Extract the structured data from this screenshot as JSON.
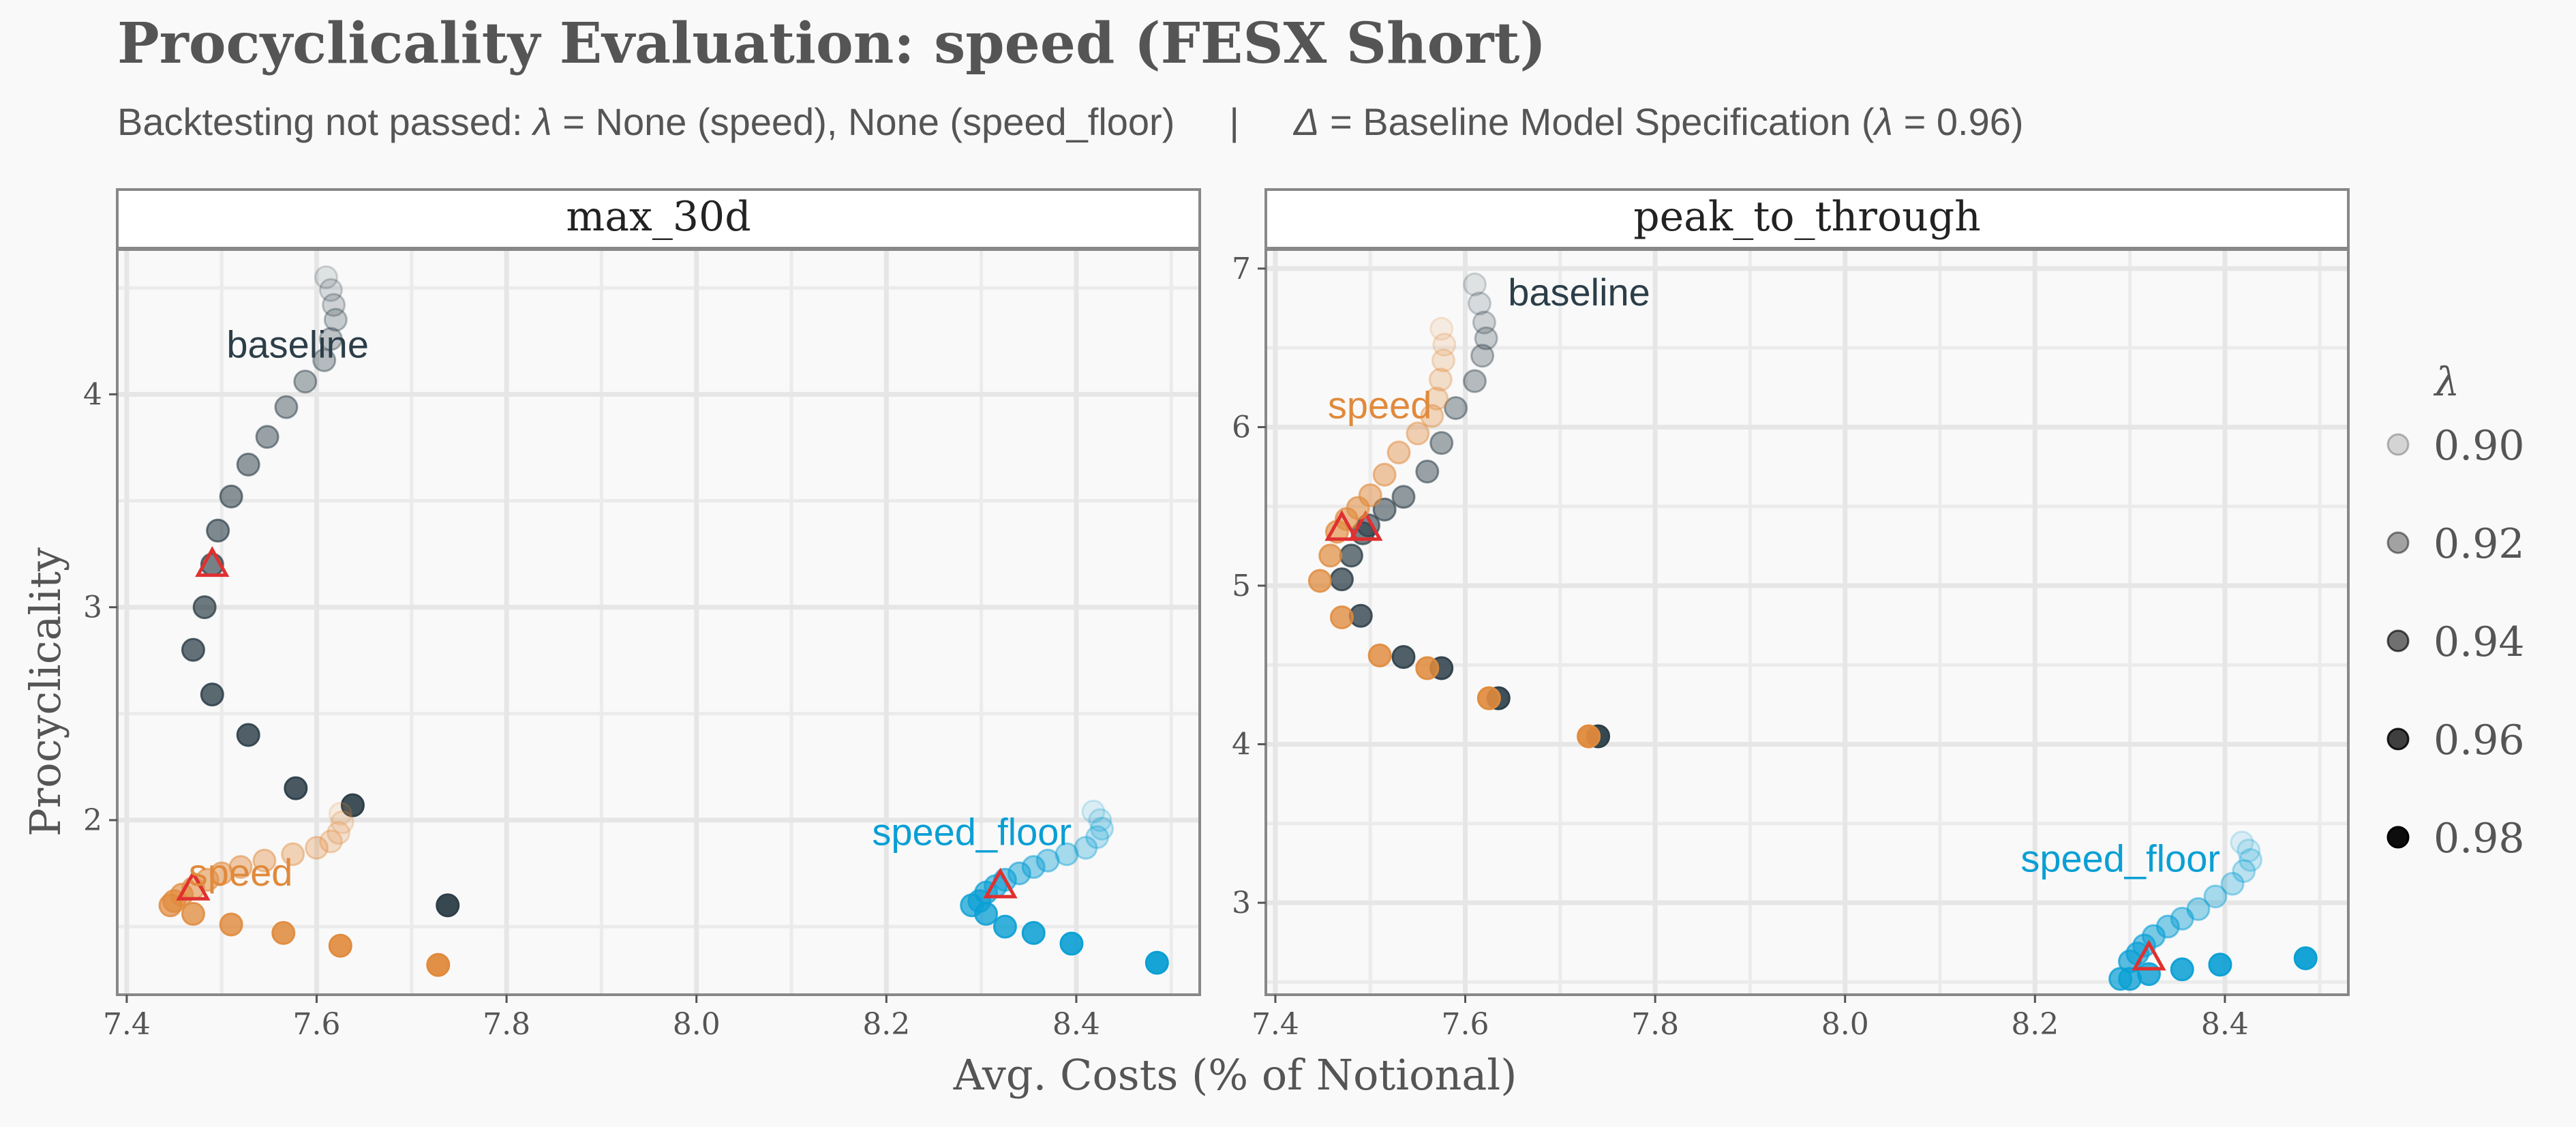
{
  "chart_data": {
    "type": "scatter",
    "title": "Procyclicality Evaluation: speed (FESX Short)",
    "subtitle": {
      "prefix": "Backtesting not passed: ",
      "lambda_symbol": "λ",
      "mid": " = None (speed), None (speed_floor)",
      "separator": "|",
      "delta_symbol": "Δ",
      "suffix_a": " = Baseline Model Specification (",
      "suffix_b": " = 0.96)"
    },
    "xlabel": "Avg. Costs (% of Notional)",
    "ylabel": "Procyclicality",
    "xlim": [
      7.39,
      8.53
    ],
    "xticks": [
      7.4,
      7.6,
      7.8,
      8.0,
      8.2,
      8.4
    ],
    "xtick_labels": [
      "7.4",
      "7.6",
      "7.8",
      "8.0",
      "8.2",
      "8.4"
    ],
    "legend": {
      "title": "λ",
      "position": "right",
      "entries": [
        "0.90",
        "0.92",
        "0.94",
        "0.96",
        "0.98"
      ],
      "alphas": [
        0.15,
        0.35,
        0.55,
        0.75,
        0.95
      ]
    },
    "colors": {
      "baseline": "#2c3e48",
      "speed": "#e08a3c",
      "speed_floor": "#0a9fd4",
      "marker": "#e03030"
    },
    "lambda_range": [
      0.9,
      0.99
    ],
    "panels": [
      {
        "name": "max_30d",
        "ylim": [
          1.18,
          4.68
        ],
        "yticks": [
          2,
          3,
          4
        ],
        "ytick_labels": [
          "2",
          "3",
          "4"
        ],
        "labels": [
          {
            "text": "baseline",
            "series": "baseline",
            "x": 7.58,
            "y": 4.22,
            "anchor": "middle"
          },
          {
            "text": "speed",
            "series": "speed",
            "x": 7.52,
            "y": 1.74,
            "anchor": "middle"
          },
          {
            "text": "speed_floor",
            "series": "speed_floor",
            "x": 8.29,
            "y": 1.93,
            "anchor": "middle"
          }
        ],
        "series": [
          {
            "series": "baseline",
            "points": [
              [
                7.61,
                4.55
              ],
              [
                7.615,
                4.49
              ],
              [
                7.618,
                4.42
              ],
              [
                7.62,
                4.35
              ],
              [
                7.615,
                4.26
              ],
              [
                7.608,
                4.16
              ],
              [
                7.588,
                4.06
              ],
              [
                7.568,
                3.94
              ],
              [
                7.548,
                3.8
              ],
              [
                7.528,
                3.67
              ],
              [
                7.51,
                3.52
              ],
              [
                7.496,
                3.36
              ],
              [
                7.49,
                3.2
              ],
              [
                7.482,
                3.0
              ],
              [
                7.47,
                2.8
              ],
              [
                7.49,
                2.59
              ],
              [
                7.528,
                2.4
              ],
              [
                7.578,
                2.15
              ],
              [
                7.638,
                2.07
              ],
              [
                7.738,
                1.6
              ]
            ],
            "marker": [
              7.49,
              3.2
            ]
          },
          {
            "series": "speed",
            "points": [
              [
                7.625,
                2.03
              ],
              [
                7.627,
                1.99
              ],
              [
                7.623,
                1.94
              ],
              [
                7.615,
                1.9
              ],
              [
                7.6,
                1.87
              ],
              [
                7.575,
                1.84
              ],
              [
                7.545,
                1.81
              ],
              [
                7.52,
                1.78
              ],
              [
                7.5,
                1.75
              ],
              [
                7.485,
                1.72
              ],
              [
                7.47,
                1.68
              ],
              [
                7.458,
                1.65
              ],
              [
                7.45,
                1.62
              ],
              [
                7.446,
                1.6
              ],
              [
                7.47,
                1.56
              ],
              [
                7.51,
                1.51
              ],
              [
                7.565,
                1.47
              ],
              [
                7.625,
                1.41
              ],
              [
                7.728,
                1.32
              ]
            ],
            "marker": [
              7.47,
              1.68
            ]
          },
          {
            "series": "speed_floor",
            "points": [
              [
                8.418,
                2.04
              ],
              [
                8.425,
                2.0
              ],
              [
                8.427,
                1.96
              ],
              [
                8.422,
                1.92
              ],
              [
                8.41,
                1.87
              ],
              [
                8.39,
                1.84
              ],
              [
                8.37,
                1.81
              ],
              [
                8.355,
                1.78
              ],
              [
                8.34,
                1.75
              ],
              [
                8.325,
                1.72
              ],
              [
                8.315,
                1.69
              ],
              [
                8.305,
                1.66
              ],
              [
                8.298,
                1.62
              ],
              [
                8.29,
                1.6
              ],
              [
                8.305,
                1.56
              ],
              [
                8.325,
                1.5
              ],
              [
                8.355,
                1.47
              ],
              [
                8.395,
                1.42
              ],
              [
                8.485,
                1.33
              ]
            ],
            "marker": [
              8.32,
              1.69
            ]
          }
        ]
      },
      {
        "name": "peak_to_through",
        "ylim": [
          2.42,
          7.12
        ],
        "yticks": [
          3,
          4,
          5,
          6,
          7
        ],
        "ytick_labels": [
          "3",
          "4",
          "5",
          "6",
          "7"
        ],
        "labels": [
          {
            "text": "baseline",
            "series": "baseline",
            "x": 7.645,
            "y": 6.83,
            "anchor": "start"
          },
          {
            "text": "speed",
            "series": "speed",
            "x": 7.51,
            "y": 6.12,
            "anchor": "middle"
          },
          {
            "text": "speed_floor",
            "series": "speed_floor",
            "x": 8.29,
            "y": 3.26,
            "anchor": "middle"
          }
        ],
        "series": [
          {
            "series": "baseline",
            "points": [
              [
                7.61,
                6.9
              ],
              [
                7.615,
                6.78
              ],
              [
                7.62,
                6.66
              ],
              [
                7.622,
                6.56
              ],
              [
                7.618,
                6.45
              ],
              [
                7.61,
                6.29
              ],
              [
                7.59,
                6.12
              ],
              [
                7.575,
                5.9
              ],
              [
                7.56,
                5.72
              ],
              [
                7.535,
                5.56
              ],
              [
                7.515,
                5.48
              ],
              [
                7.498,
                5.38
              ],
              [
                7.492,
                5.33
              ],
              [
                7.48,
                5.19
              ],
              [
                7.47,
                5.04
              ],
              [
                7.49,
                4.81
              ],
              [
                7.535,
                4.55
              ],
              [
                7.575,
                4.48
              ],
              [
                7.635,
                4.29
              ],
              [
                7.74,
                4.05
              ]
            ],
            "marker": [
              7.495,
              5.36
            ]
          },
          {
            "series": "speed",
            "points": [
              [
                7.575,
                6.62
              ],
              [
                7.578,
                6.52
              ],
              [
                7.577,
                6.42
              ],
              [
                7.574,
                6.3
              ],
              [
                7.57,
                6.18
              ],
              [
                7.565,
                6.07
              ],
              [
                7.55,
                5.96
              ],
              [
                7.53,
                5.84
              ],
              [
                7.515,
                5.7
              ],
              [
                7.5,
                5.57
              ],
              [
                7.487,
                5.49
              ],
              [
                7.475,
                5.42
              ],
              [
                7.465,
                5.34
              ],
              [
                7.458,
                5.19
              ],
              [
                7.447,
                5.03
              ],
              [
                7.47,
                4.8
              ],
              [
                7.51,
                4.56
              ],
              [
                7.56,
                4.48
              ],
              [
                7.625,
                4.29
              ],
              [
                7.73,
                4.05
              ]
            ],
            "marker": [
              7.47,
              5.36
            ]
          },
          {
            "series": "speed_floor",
            "points": [
              [
                8.418,
                3.38
              ],
              [
                8.425,
                3.33
              ],
              [
                8.427,
                3.27
              ],
              [
                8.42,
                3.2
              ],
              [
                8.408,
                3.12
              ],
              [
                8.39,
                3.04
              ],
              [
                8.372,
                2.96
              ],
              [
                8.355,
                2.9
              ],
              [
                8.34,
                2.85
              ],
              [
                8.325,
                2.79
              ],
              [
                8.315,
                2.73
              ],
              [
                8.308,
                2.68
              ],
              [
                8.3,
                2.63
              ],
              [
                8.29,
                2.52
              ],
              [
                8.3,
                2.52
              ],
              [
                8.32,
                2.55
              ],
              [
                8.355,
                2.58
              ],
              [
                8.395,
                2.61
              ],
              [
                8.485,
                2.65
              ]
            ],
            "marker": [
              8.32,
              2.65
            ]
          }
        ]
      }
    ]
  }
}
